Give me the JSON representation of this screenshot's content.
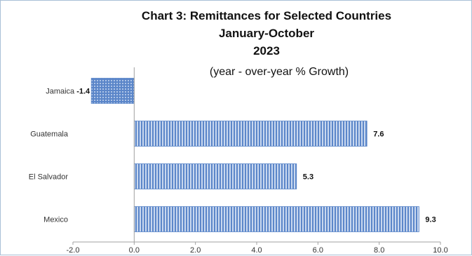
{
  "chart_data": {
    "type": "bar",
    "orientation": "horizontal",
    "title_lines": [
      "Chart 3:  Remittances for Selected Countries",
      "January-October",
      "2023"
    ],
    "subtitle": "(year - over-year % Growth)",
    "categories": [
      "Jamaica",
      "Guatemala",
      "El Salvador",
      "Mexico"
    ],
    "values": [
      -1.4,
      7.6,
      5.3,
      9.3
    ],
    "value_labels": [
      "-1.4",
      "7.6",
      "5.3",
      "9.3"
    ],
    "xlim": [
      -2.0,
      10.0
    ],
    "xticks": [
      -2.0,
      0.0,
      2.0,
      4.0,
      6.0,
      8.0,
      10.0
    ],
    "xtick_labels": [
      "-2.0",
      "0.0",
      "2.0",
      "4.0",
      "6.0",
      "8.0",
      "10.0"
    ],
    "grid": false,
    "legend": "none",
    "colors": {
      "bar": "#5b86c9",
      "bar_light": "#c9d8ef",
      "axis": "#a0a0a0",
      "frame": "#a9bfd6"
    }
  }
}
